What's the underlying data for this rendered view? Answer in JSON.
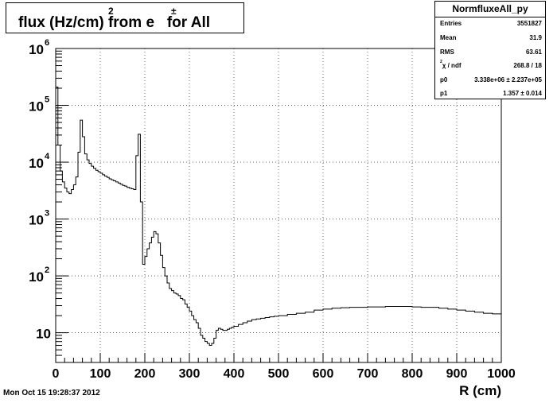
{
  "title": {
    "text": "flux (Hz/cm) from e   for All",
    "superscript_unit": "2",
    "superscript_particle": "±"
  },
  "stats": {
    "name": "NormfluxeAll_py",
    "rows": [
      {
        "key": "Entries",
        "value": "3551827"
      },
      {
        "key": "Mean",
        "value": "31.9"
      },
      {
        "key": "RMS",
        "value": "63.61"
      },
      {
        "key": "χ  / ndf",
        "chi_sup": "2",
        "value": "268.8 / 18"
      },
      {
        "key": "p0",
        "value": "3.338e+06 ± 2.237e+05"
      },
      {
        "key": "p1",
        "value": "1.357 ± 0.014"
      }
    ]
  },
  "footer": {
    "date": "Mon Oct 15 19:28:37 2012"
  },
  "chart_data": {
    "type": "line",
    "style": "step histogram",
    "title": "flux (Hz/cm2) from e± for All",
    "xlabel": "R (cm)",
    "ylabel": "",
    "xlim": [
      0,
      1000
    ],
    "ylim": [
      3,
      1000000
    ],
    "yscale": "log",
    "grid": true,
    "legend": "top-right stats box",
    "line_color": "#000000",
    "x_ticks": [
      0,
      100,
      200,
      300,
      400,
      500,
      600,
      700,
      800,
      900,
      1000
    ],
    "y_ticks": [
      {
        "value": 10,
        "label": "10",
        "sup": ""
      },
      {
        "value": 100,
        "label": "10",
        "sup": "2"
      },
      {
        "value": 1000,
        "label": "10",
        "sup": "3"
      },
      {
        "value": 10000,
        "label": "10",
        "sup": "4"
      },
      {
        "value": 100000,
        "label": "10",
        "sup": "5"
      },
      {
        "value": 1000000,
        "label": "10",
        "sup": "6"
      }
    ],
    "bin_width": 5,
    "series": [
      {
        "x": [
          0,
          5,
          10,
          15,
          20,
          25,
          30,
          35,
          40,
          45,
          50,
          55,
          60,
          65,
          70,
          75,
          80,
          85,
          90,
          95,
          100,
          105,
          110,
          115,
          120,
          125,
          130,
          135,
          140,
          145,
          150,
          155,
          160,
          165,
          170,
          175,
          180,
          185,
          190,
          195,
          200,
          205,
          210,
          215,
          220,
          225,
          230,
          235,
          240,
          245,
          250,
          255,
          260,
          265,
          270,
          275,
          280,
          285,
          290,
          295,
          300,
          305,
          310,
          315,
          320,
          325,
          330,
          335,
          340,
          345,
          350,
          355,
          360,
          365,
          370,
          375,
          380,
          385,
          390,
          395,
          400,
          410,
          420,
          430,
          440,
          450,
          460,
          470,
          480,
          490,
          500,
          520,
          540,
          560,
          580,
          600,
          620,
          640,
          660,
          680,
          700,
          720,
          740,
          760,
          780,
          800,
          820,
          840,
          860,
          880,
          900,
          920,
          940,
          960,
          980,
          1000
        ],
        "y": [
          210000,
          20000,
          7000,
          4500,
          3500,
          3000,
          2800,
          3300,
          4000,
          5500,
          15000,
          55000,
          28000,
          14000,
          11000,
          9500,
          8500,
          7800,
          7200,
          6800,
          6400,
          6000,
          5700,
          5400,
          5100,
          4900,
          4700,
          4500,
          4300,
          4100,
          3900,
          3800,
          3600,
          3500,
          3400,
          3300,
          13000,
          31000,
          2000,
          160,
          220,
          300,
          380,
          480,
          600,
          550,
          380,
          230,
          140,
          100,
          75,
          60,
          55,
          50,
          48,
          45,
          40,
          38,
          32,
          28,
          24,
          20,
          17,
          15,
          12,
          9,
          8,
          7,
          6.5,
          6,
          6.5,
          8,
          11,
          12,
          11.5,
          11,
          11,
          11.5,
          12,
          12.5,
          13,
          14,
          15,
          16,
          17,
          17.5,
          18,
          18.5,
          19,
          19.5,
          20,
          21,
          22,
          23,
          25,
          26,
          27,
          27.5,
          28,
          28,
          28.5,
          28.5,
          29,
          29,
          29,
          28.5,
          28,
          28,
          27,
          26,
          25,
          24,
          23,
          22,
          21.5,
          21
        ]
      }
    ]
  }
}
